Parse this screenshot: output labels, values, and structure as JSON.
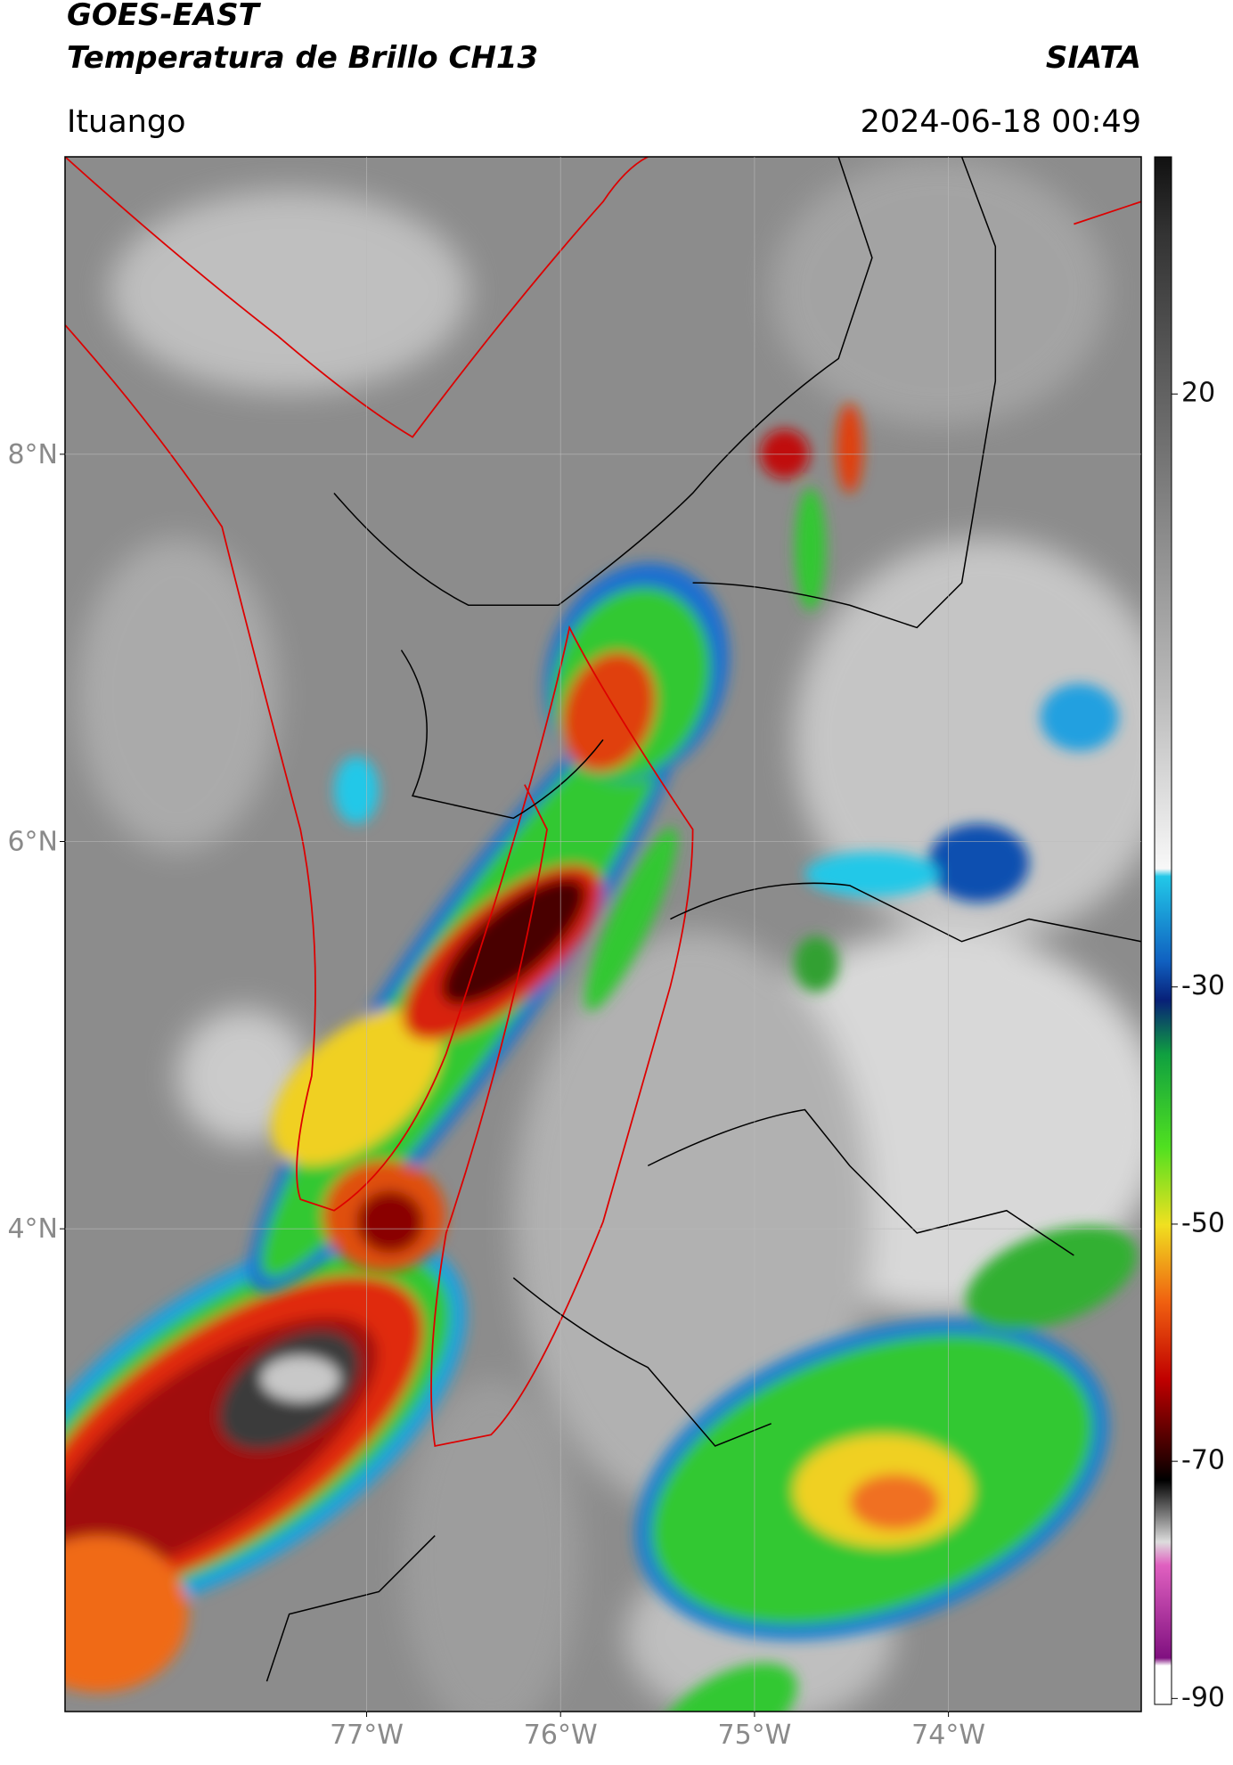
{
  "header": {
    "title": "GOES-EAST",
    "subtitle": "Temperatura de Brillo CH13",
    "brand": "SIATA",
    "location": "Ituango",
    "datetime": "2024-06-18 00:49"
  },
  "map": {
    "xlim": [
      -78.555,
      -73.006
    ],
    "ylim": [
      1.507,
      9.536
    ],
    "xticks": [
      {
        "value": -77,
        "label": "77°W"
      },
      {
        "value": -76,
        "label": "76°W"
      },
      {
        "value": -75,
        "label": "75°W"
      },
      {
        "value": -74,
        "label": "74°W"
      }
    ],
    "yticks": [
      {
        "value": 4,
        "label": "4°N"
      },
      {
        "value": 6,
        "label": "6°N"
      },
      {
        "value": 8,
        "label": "8°N"
      }
    ]
  },
  "colorbar": {
    "lim": [
      -90.5,
      40
    ],
    "ticks": [
      -90,
      -70,
      -50,
      -30,
      20
    ]
  }
}
